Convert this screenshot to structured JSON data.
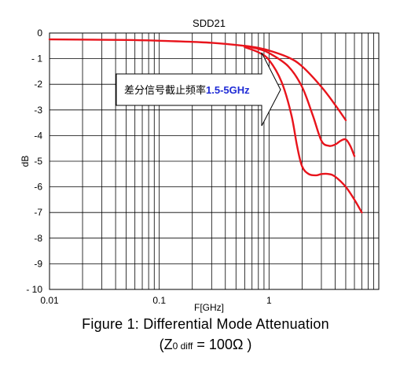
{
  "chart_data": {
    "type": "line",
    "title": "SDD21",
    "xlabel": "F[GHz]",
    "ylabel": "dB",
    "xscale": "log",
    "xlim": [
      0.01,
      10
    ],
    "ylim": [
      -10,
      0
    ],
    "grid": true,
    "x_ticks": [
      "0.01",
      "0.1",
      "1"
    ],
    "y_ticks": [
      "0",
      "- 1",
      "-2",
      "-3",
      "-4",
      "-5",
      "-6",
      "-7",
      "-8",
      "-9",
      "- 10"
    ],
    "series_color": "#e8141c",
    "series": [
      {
        "x": [
          0.01,
          0.05,
          0.1,
          0.3,
          0.6,
          0.8,
          1.0,
          1.5,
          2.0,
          3.0,
          4.0,
          5.0
        ],
        "y": [
          -0.25,
          -0.27,
          -0.3,
          -0.38,
          -0.5,
          -0.58,
          -0.68,
          -0.95,
          -1.3,
          -2.1,
          -2.8,
          -3.4
        ]
      },
      {
        "x": [
          0.6,
          0.8,
          1.0,
          1.5,
          2.0,
          2.5,
          3.0,
          3.5,
          4.0,
          4.5,
          5.0,
          5.5,
          6.0
        ],
        "y": [
          -0.5,
          -0.62,
          -0.78,
          -1.3,
          -2.1,
          -3.2,
          -4.2,
          -4.4,
          -4.35,
          -4.2,
          -4.15,
          -4.4,
          -4.8
        ]
      },
      {
        "x": [
          0.6,
          0.8,
          1.0,
          1.3,
          1.6,
          1.8,
          2.0,
          2.3,
          2.7,
          3.0,
          3.5,
          4.0,
          5.0,
          6.0,
          7.0
        ],
        "y": [
          -0.55,
          -0.75,
          -1.05,
          -1.9,
          -3.2,
          -4.4,
          -5.2,
          -5.5,
          -5.55,
          -5.5,
          -5.5,
          -5.6,
          -6.0,
          -6.5,
          -7.0
        ]
      }
    ],
    "annotation": {
      "text_cn": "差分信号截止频率",
      "text_band": "1.5-5GHz",
      "band_color": "#1f2bd6"
    }
  },
  "caption": {
    "line1": "Figure 1:  Differential Mode Attenuation",
    "line2_open": "(Z",
    "line2_sub": "0 diff",
    "line2_rest": " = 100Ω )"
  }
}
